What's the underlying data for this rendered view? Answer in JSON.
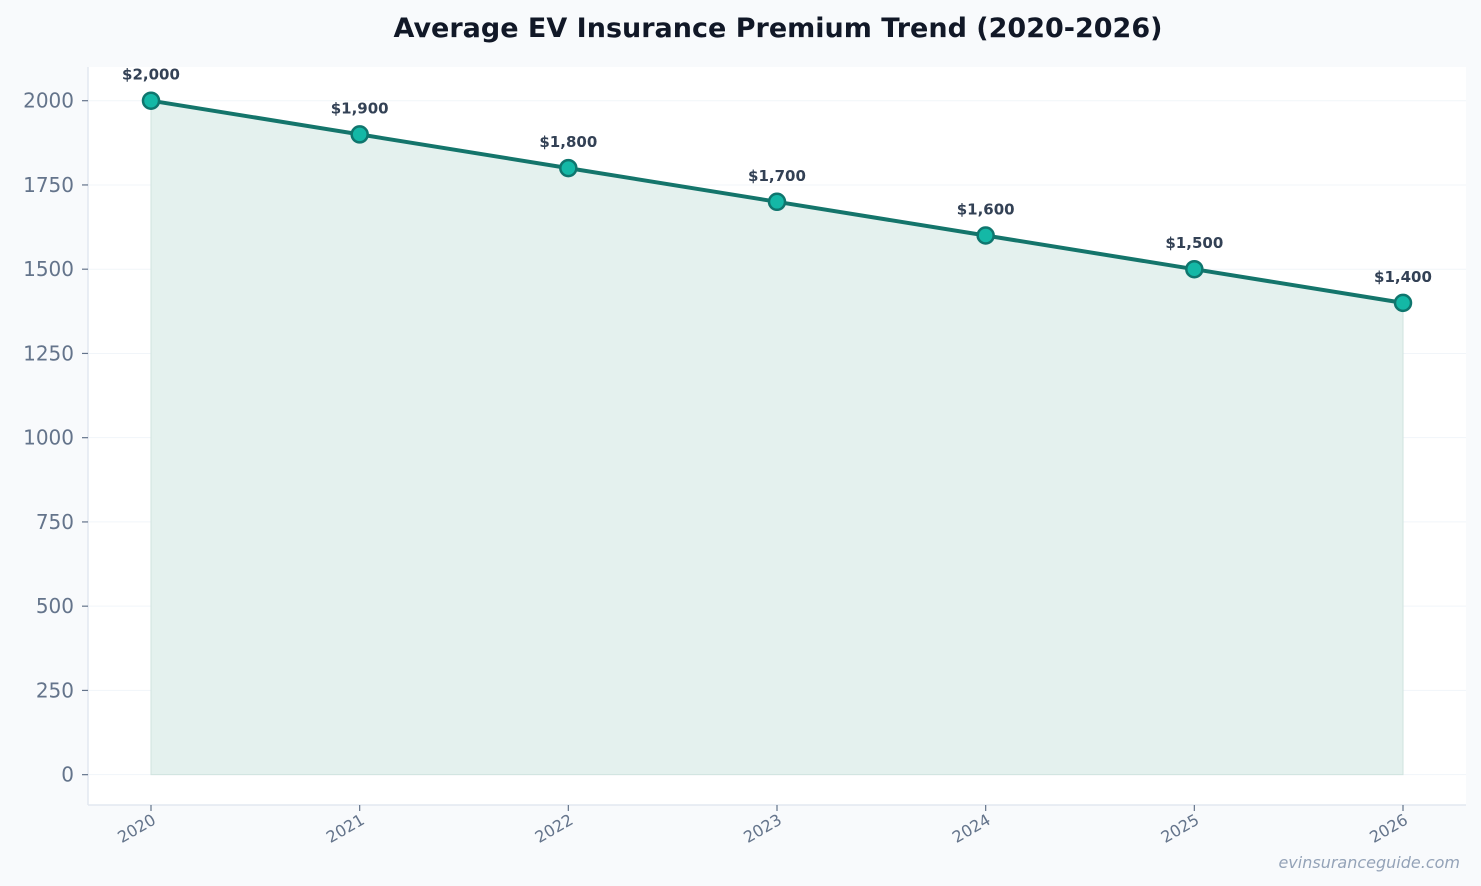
{
  "chart_data": {
    "type": "area",
    "title": "Average EV Insurance Premium Trend (2020-2026)",
    "xlabel": "",
    "ylabel": "",
    "categories": [
      "2020",
      "2021",
      "2022",
      "2023",
      "2024",
      "2025",
      "2026"
    ],
    "series": [
      {
        "values": [
          2000,
          1900,
          1800,
          1700,
          1600,
          1500,
          1400
        ],
        "labels": [
          "$2,000",
          "$1,900",
          "$1,800",
          "$1,700",
          "$1,600",
          "$1,500",
          "$1,400"
        ]
      }
    ],
    "ylim": [
      -90,
      2100
    ],
    "yticks": [
      0,
      250,
      500,
      750,
      1000,
      1250,
      1500,
      1750,
      2000
    ],
    "grid": true,
    "legend": "none",
    "colors": {
      "line": "#14756b",
      "marker_fill": "#14b8a6",
      "marker_edge": "#0f766e",
      "area_fill": "#e4f1ee"
    },
    "watermark": "evinsuranceguide.com"
  }
}
